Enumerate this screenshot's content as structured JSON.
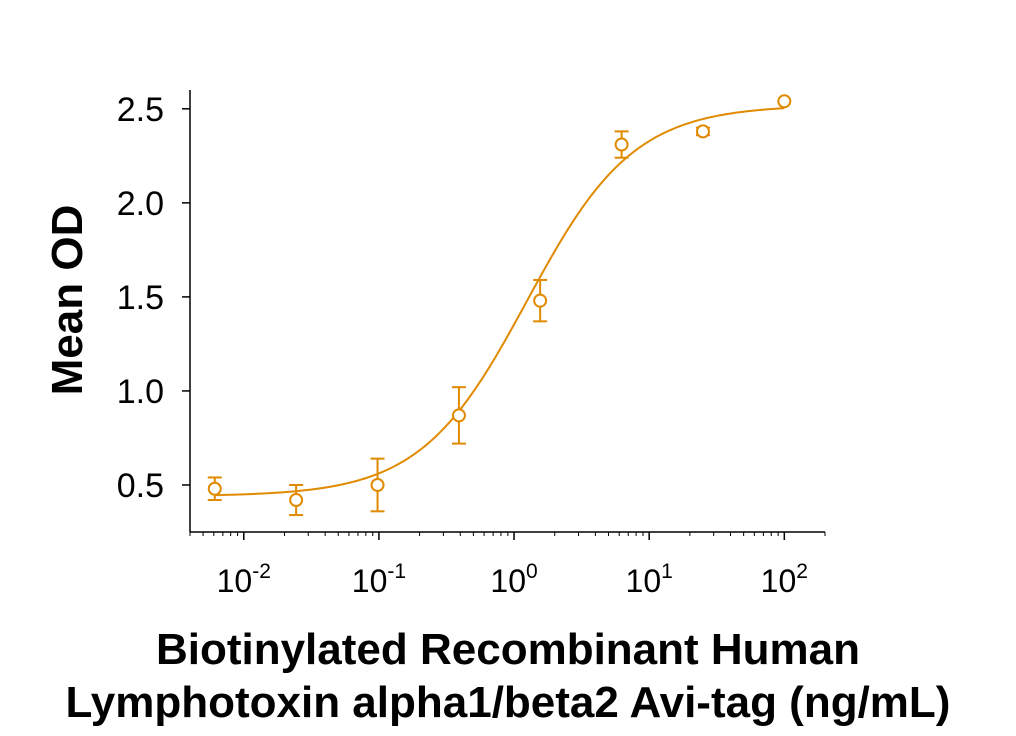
{
  "chart_data": {
    "type": "scatter",
    "title": "",
    "xlabel_lines": [
      "Biotinylated Recombinant Human",
      "Lymphotoxin alpha1/beta2 Avi-tag (ng/mL)"
    ],
    "ylabel": "Mean OD",
    "x_scale": "log",
    "xlim": [
      0.004,
      200
    ],
    "ylim": [
      0.25,
      2.6
    ],
    "x_ticks": [
      {
        "value": 0.01,
        "base": "10",
        "exp": "-2"
      },
      {
        "value": 0.1,
        "base": "10",
        "exp": "-1"
      },
      {
        "value": 1,
        "base": "10",
        "exp": "0"
      },
      {
        "value": 10,
        "base": "10",
        "exp": "1"
      },
      {
        "value": 100,
        "base": "10",
        "exp": "2"
      }
    ],
    "y_ticks": [
      {
        "value": 0.5,
        "label": "0.5"
      },
      {
        "value": 1.0,
        "label": "1.0"
      },
      {
        "value": 1.5,
        "label": "1.5"
      },
      {
        "value": 2.0,
        "label": "2.0"
      },
      {
        "value": 2.5,
        "label": "2.5"
      }
    ],
    "series": [
      {
        "color": "#E08A00",
        "points": [
          {
            "x": 0.0061,
            "y": 0.48,
            "err": 0.06
          },
          {
            "x": 0.0244,
            "y": 0.42,
            "err": 0.08
          },
          {
            "x": 0.0977,
            "y": 0.5,
            "err": 0.14
          },
          {
            "x": 0.391,
            "y": 0.87,
            "err": 0.15
          },
          {
            "x": 1.56,
            "y": 1.48,
            "err": 0.11
          },
          {
            "x": 6.25,
            "y": 2.31,
            "err": 0.07
          },
          {
            "x": 25,
            "y": 2.38,
            "err": 0.02
          },
          {
            "x": 100,
            "y": 2.54,
            "err": 0.0
          }
        ],
        "fit": {
          "model": "4PL",
          "bottom": 0.44,
          "top": 2.52,
          "ec50": 1.25,
          "hill": 1.1
        }
      }
    ],
    "grid": false,
    "legend": "none"
  }
}
